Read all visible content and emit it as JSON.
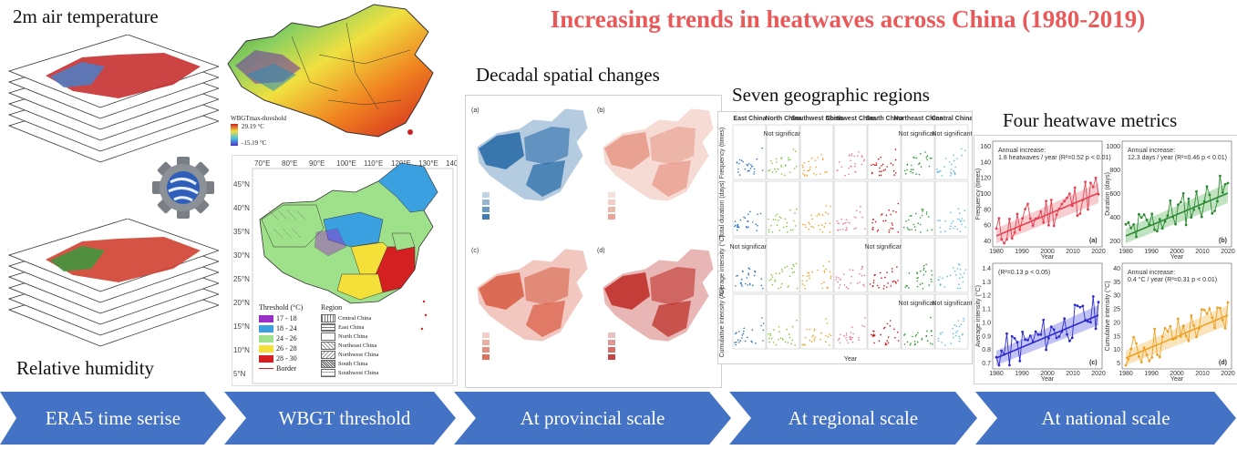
{
  "title": "Increasing trends in heatwaves across China (1980-2019)",
  "left": {
    "top_label": "2m air temperature",
    "bottom_label": "Relative humidity"
  },
  "wbgt": {
    "legend_title": "WBGTmax-threshold",
    "legend_max": "29.19 °C",
    "legend_min": "-15.19 °C",
    "lon_ticks": [
      "70°E",
      "80°E",
      "90°E",
      "100°E",
      "110°E",
      "120°E",
      "130°E",
      "140°E"
    ],
    "lat_ticks": [
      "45°N",
      "40°N",
      "35°N",
      "30°N",
      "25°N",
      "20°N",
      "15°N",
      "10°N",
      "5°N"
    ],
    "threshold_title": "Threshold (°C)",
    "thresholds": [
      "17 - 18",
      "18 - 24",
      "24 - 26",
      "26 - 28",
      "28 - 30"
    ],
    "threshold_colors": [
      "#9a2ec8",
      "#3aa0e0",
      "#9fe08a",
      "#f5e03a",
      "#d42020"
    ],
    "border_label": "Border",
    "region_title": "Region",
    "regions": [
      "Central China",
      "East China",
      "North China",
      "Northeast China",
      "Northwest China",
      "South China",
      "Southwest China"
    ]
  },
  "provincial": {
    "heading": "Decadal spatial changes",
    "panels": [
      "(a)",
      "(b)",
      "(c)",
      "(d)"
    ],
    "panel_colors": [
      "#2b6da8",
      "#e89a8a",
      "#d9604a",
      "#c0302a"
    ]
  },
  "regional": {
    "heading": "Seven geographic regions",
    "columns": [
      "East China",
      "North China",
      "Southwest China",
      "Northwest China",
      "South China",
      "Northeast China",
      "Central China"
    ],
    "column_colors": [
      "#2f72c0",
      "#7ec63a",
      "#f0a020",
      "#e87a8a",
      "#d01010",
      "#2a9a30",
      "#60b8e8"
    ],
    "not_significant": "Not significant",
    "x_label": "Year",
    "row_labels": [
      "Frequency (times)",
      "Total duration (days)",
      "Average intensity (°C)",
      "Cumulative intensity (°C)"
    ]
  },
  "national": {
    "heading": "Four heatwave metrics",
    "panels": [
      {
        "tag": "(a)",
        "ylabel": "Frequency (times)",
        "note1": "Annual increase:",
        "note2": "1.8 heatwaves / year (R²=0.52 p < 0.01)",
        "color": "#e84050",
        "band": "#f5b8bc",
        "yticks": [
          "160",
          "140",
          "120",
          "100",
          "80",
          "60",
          "40"
        ]
      },
      {
        "tag": "(b)",
        "ylabel": "Duration (days)",
        "note1": "Annual increase:",
        "note2": "12.3 days / year (R²=0.46 p < 0.01)",
        "color": "#2a8a30",
        "band": "#a6d7a6",
        "yticks": [
          "1000",
          "800",
          "600",
          "400",
          "200"
        ]
      },
      {
        "tag": "(c)",
        "ylabel": "Average intensity (°C)",
        "note1": "(R²=0.13 p < 0.05)",
        "note2": "",
        "color": "#2b2bd0",
        "band": "#a8a8f0",
        "yticks": [
          "1.4",
          "1.3",
          "1.2",
          "1.1",
          "1.0",
          "0.9",
          "0.8",
          "0.7"
        ]
      },
      {
        "tag": "(d)",
        "ylabel": "Cumulative intensity (°C)",
        "note1": "Annual increase:",
        "note2": "0.4 °C / year (R²=0.31 p < 0.01)",
        "color": "#f0a020",
        "band": "#f8d8a0",
        "yticks": [
          "40",
          "35",
          "30",
          "25",
          "20",
          "15",
          "10",
          "5"
        ]
      }
    ],
    "xticks": [
      "1980",
      "1990",
      "2000",
      "2010",
      "2020"
    ],
    "x_label": "Year"
  },
  "arrows": [
    {
      "label": "ERA5 time serise"
    },
    {
      "label": "WBGT threshold"
    },
    {
      "label": "At provincial scale"
    },
    {
      "label": "At regional scale"
    },
    {
      "label": "At national scale"
    }
  ],
  "arrow_color": "#4472c4"
}
